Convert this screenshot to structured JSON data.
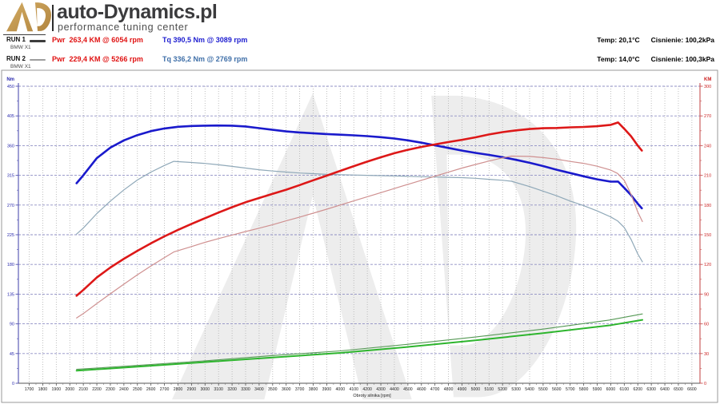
{
  "header": {
    "brand": "auto-Dynamics.pl",
    "tagline": "performance tuning center",
    "logo_color_dark": "#b2853f",
    "logo_color_light": "#d2ab63"
  },
  "legend": {
    "runs": [
      {
        "name": "RUN 1",
        "vehicle": "BMW X1",
        "pwr": "Pwr  263,4 KM @ 6054 rpm",
        "tq": "Tq 390,5 Nm @ 3089 rpm",
        "pwr_color": "#e01212",
        "tq_color": "#1c1cd0",
        "sample_color": "#3c3c3c",
        "sample_width": 2.5
      },
      {
        "name": "RUN 2",
        "vehicle": "BMW X1",
        "pwr": "Pwr  229,4 KM @ 5266 rpm",
        "tq": "Tq 336,2 Nm @ 2769 rpm",
        "pwr_color": "#e01212",
        "tq_color": "#3f6fa8",
        "sample_color": "#9d9d9d",
        "sample_width": 1.5
      }
    ]
  },
  "conditions": [
    {
      "temp": "Temp: 20,1°C",
      "pressure": "Cisnienie: 100,2kPa"
    },
    {
      "temp": "Temp: 14,0°C",
      "pressure": "Cisnienie: 100,3kPa"
    }
  ],
  "chart_data": {
    "type": "line",
    "watermark_color": "#ededed",
    "grid": {
      "h_color": "#8f8fc4",
      "v_color": "#b0b0b0"
    },
    "x_axis": {
      "label": "Obroty silnika [rpm]",
      "min": 1700,
      "max": 6600,
      "tick_step": 100,
      "plot_min": 1620,
      "plot_max": 6660,
      "tick_color": "#222222"
    },
    "y_left": {
      "label": "Nm",
      "min": 0,
      "max": 450,
      "tick_step": 45,
      "color": "#2a2aad",
      "axis_color": "#5d5db8"
    },
    "y_right": {
      "label": "KM",
      "min": 0,
      "max": 300,
      "tick_step": 30,
      "color": "#cc2222",
      "axis_color": "#cc6060"
    },
    "series": [
      {
        "name": "torque-run1",
        "axis": "left",
        "color": "#1a1acc",
        "width": 2.6,
        "points": [
          [
            2050,
            303
          ],
          [
            2100,
            315
          ],
          [
            2200,
            341
          ],
          [
            2300,
            357
          ],
          [
            2400,
            368
          ],
          [
            2500,
            376
          ],
          [
            2600,
            382
          ],
          [
            2700,
            386
          ],
          [
            2800,
            388.5
          ],
          [
            2900,
            389.8
          ],
          [
            3000,
            390.3
          ],
          [
            3089,
            390.5
          ],
          [
            3200,
            390.2
          ],
          [
            3300,
            389
          ],
          [
            3400,
            386.5
          ],
          [
            3500,
            384
          ],
          [
            3600,
            381.5
          ],
          [
            3700,
            380
          ],
          [
            3800,
            378.8
          ],
          [
            3900,
            377.6
          ],
          [
            4000,
            376.6
          ],
          [
            4100,
            375.6
          ],
          [
            4200,
            374.4
          ],
          [
            4300,
            372.8
          ],
          [
            4400,
            370.8
          ],
          [
            4500,
            368
          ],
          [
            4600,
            364.5
          ],
          [
            4700,
            360.5
          ],
          [
            4800,
            356.5
          ],
          [
            4900,
            352.5
          ],
          [
            5000,
            349
          ],
          [
            5100,
            346
          ],
          [
            5200,
            342.5
          ],
          [
            5300,
            338.5
          ],
          [
            5400,
            334
          ],
          [
            5500,
            329
          ],
          [
            5600,
            323.5
          ],
          [
            5700,
            318.5
          ],
          [
            5800,
            313.5
          ],
          [
            5900,
            309
          ],
          [
            6000,
            305.5
          ],
          [
            6054,
            305.6
          ],
          [
            6100,
            296
          ],
          [
            6150,
            285
          ],
          [
            6200,
            272
          ],
          [
            6230,
            265
          ]
        ]
      },
      {
        "name": "torque-run2",
        "axis": "left",
        "color": "#8fa8b8",
        "width": 1.2,
        "points": [
          [
            2050,
            226
          ],
          [
            2100,
            235
          ],
          [
            2200,
            257
          ],
          [
            2300,
            276
          ],
          [
            2400,
            293
          ],
          [
            2500,
            308
          ],
          [
            2600,
            320
          ],
          [
            2700,
            330
          ],
          [
            2769,
            336.2
          ],
          [
            2900,
            334.5
          ],
          [
            3000,
            333
          ],
          [
            3100,
            331
          ],
          [
            3200,
            328.5
          ],
          [
            3300,
            326
          ],
          [
            3400,
            323.5
          ],
          [
            3500,
            321.5
          ],
          [
            3600,
            320
          ],
          [
            3700,
            318.5
          ],
          [
            3800,
            317.5
          ],
          [
            3900,
            316.5
          ],
          [
            4000,
            316
          ],
          [
            4100,
            315.5
          ],
          [
            4200,
            315
          ],
          [
            4300,
            314.5
          ],
          [
            4400,
            314
          ],
          [
            4500,
            313.5
          ],
          [
            4600,
            313
          ],
          [
            4700,
            312.5
          ],
          [
            4800,
            312
          ],
          [
            4900,
            311.5
          ],
          [
            5000,
            310.5
          ],
          [
            5100,
            309
          ],
          [
            5200,
            307.5
          ],
          [
            5266,
            306
          ],
          [
            5400,
            298
          ],
          [
            5500,
            291
          ],
          [
            5600,
            284
          ],
          [
            5700,
            276
          ],
          [
            5800,
            269
          ],
          [
            5900,
            261
          ],
          [
            6000,
            252
          ],
          [
            6050,
            246
          ],
          [
            6100,
            236
          ],
          [
            6150,
            218
          ],
          [
            6200,
            196
          ],
          [
            6234,
            184
          ]
        ]
      },
      {
        "name": "power-run1",
        "axis": "right",
        "color": "#dd1818",
        "width": 2.6,
        "points": [
          [
            2050,
            88.4
          ],
          [
            2100,
            94.2
          ],
          [
            2200,
            106.8
          ],
          [
            2300,
            116.9
          ],
          [
            2400,
            125.7
          ],
          [
            2500,
            133.8
          ],
          [
            2600,
            141.4
          ],
          [
            2700,
            148.4
          ],
          [
            2800,
            154.9
          ],
          [
            2900,
            161
          ],
          [
            3000,
            166.7
          ],
          [
            3100,
            172.4
          ],
          [
            3200,
            177.8
          ],
          [
            3300,
            182.8
          ],
          [
            3400,
            187.1
          ],
          [
            3500,
            191.4
          ],
          [
            3600,
            195.5
          ],
          [
            3700,
            200.2
          ],
          [
            3800,
            205
          ],
          [
            3900,
            209.7
          ],
          [
            4000,
            214.5
          ],
          [
            4100,
            219.3
          ],
          [
            4200,
            223.9
          ],
          [
            4300,
            228.2
          ],
          [
            4400,
            232.3
          ],
          [
            4500,
            235.8
          ],
          [
            4600,
            238.7
          ],
          [
            4700,
            241.2
          ],
          [
            4800,
            243.6
          ],
          [
            4900,
            245.9
          ],
          [
            5000,
            248.4
          ],
          [
            5100,
            251.3
          ],
          [
            5200,
            253.6
          ],
          [
            5300,
            255.4
          ],
          [
            5400,
            256.8
          ],
          [
            5500,
            257.6
          ],
          [
            5600,
            257.8
          ],
          [
            5700,
            258.5
          ],
          [
            5800,
            258.9
          ],
          [
            5900,
            259.6
          ],
          [
            6000,
            261
          ],
          [
            6054,
            263.4
          ],
          [
            6100,
            257
          ],
          [
            6150,
            249.5
          ],
          [
            6200,
            240
          ],
          [
            6230,
            235
          ]
        ]
      },
      {
        "name": "power-run2",
        "axis": "right",
        "color": "#cf9090",
        "width": 1.2,
        "points": [
          [
            2050,
            66
          ],
          [
            2100,
            70.3
          ],
          [
            2200,
            80.5
          ],
          [
            2300,
            90.4
          ],
          [
            2400,
            100.1
          ],
          [
            2500,
            109.6
          ],
          [
            2600,
            118.5
          ],
          [
            2700,
            126.9
          ],
          [
            2769,
            132.6
          ],
          [
            2900,
            138.1
          ],
          [
            3000,
            142.3
          ],
          [
            3100,
            146.1
          ],
          [
            3200,
            149.7
          ],
          [
            3300,
            153.2
          ],
          [
            3400,
            156.6
          ],
          [
            3500,
            160.2
          ],
          [
            3600,
            164
          ],
          [
            3700,
            167.8
          ],
          [
            3800,
            171.8
          ],
          [
            3900,
            175.8
          ],
          [
            4000,
            180
          ],
          [
            4100,
            184.2
          ],
          [
            4200,
            188.4
          ],
          [
            4300,
            192.5
          ],
          [
            4400,
            196.7
          ],
          [
            4500,
            200.9
          ],
          [
            4600,
            205
          ],
          [
            4700,
            209.1
          ],
          [
            4800,
            213.2
          ],
          [
            4900,
            217.3
          ],
          [
            5000,
            221
          ],
          [
            5100,
            224.4
          ],
          [
            5200,
            227.7
          ],
          [
            5266,
            229.4
          ],
          [
            5400,
            229.1
          ],
          [
            5500,
            227.9
          ],
          [
            5600,
            226.4
          ],
          [
            5700,
            224
          ],
          [
            5800,
            222.1
          ],
          [
            5900,
            219.2
          ],
          [
            6000,
            215.3
          ],
          [
            6050,
            211.9
          ],
          [
            6100,
            204.9
          ],
          [
            6150,
            190.9
          ],
          [
            6200,
            173
          ],
          [
            6234,
            163.3
          ]
        ]
      },
      {
        "name": "green-trace-1",
        "axis": "left",
        "color": "#2db52d",
        "width": 2.0,
        "points": [
          [
            2050,
            19
          ],
          [
            2500,
            25
          ],
          [
            3000,
            32
          ],
          [
            3500,
            39
          ],
          [
            4000,
            46
          ],
          [
            4500,
            55
          ],
          [
            5000,
            65
          ],
          [
            5500,
            76
          ],
          [
            6000,
            88
          ],
          [
            6234,
            96
          ]
        ]
      },
      {
        "name": "green-trace-2",
        "axis": "left",
        "color": "#559955",
        "width": 1.1,
        "points": [
          [
            2050,
            21
          ],
          [
            2500,
            27
          ],
          [
            3000,
            34
          ],
          [
            3500,
            42
          ],
          [
            4000,
            49
          ],
          [
            4500,
            59
          ],
          [
            5000,
            70
          ],
          [
            5500,
            82
          ],
          [
            6000,
            96
          ],
          [
            6234,
            105
          ]
        ]
      }
    ]
  }
}
